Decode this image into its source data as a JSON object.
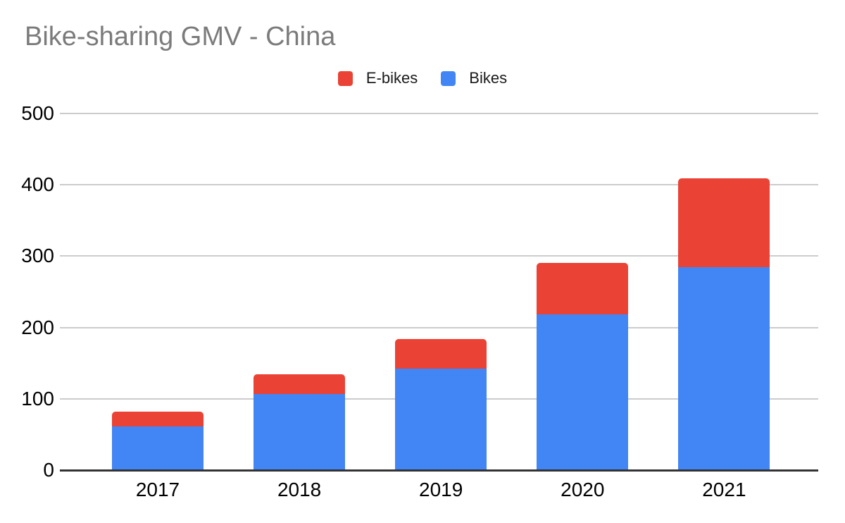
{
  "title": "Bike-sharing GMV - China",
  "legend": {
    "items": [
      {
        "label": "E-bikes",
        "color": "#EA4335"
      },
      {
        "label": "Bikes",
        "color": "#4285F4"
      }
    ]
  },
  "colors": {
    "ebikes": "#EA4335",
    "bikes": "#4285F4",
    "title_text": "#7B7B7B",
    "axis_text": "#000000",
    "gridline": "#CCCCCC",
    "baseline": "#333333",
    "background": "#FFFFFF"
  },
  "chart_data": {
    "type": "bar",
    "stacked": true,
    "title": "Bike-sharing GMV - China",
    "categories": [
      "2017",
      "2018",
      "2019",
      "2020",
      "2021"
    ],
    "series": [
      {
        "name": "Bikes",
        "color": "#4285F4",
        "values": [
          61,
          107,
          142,
          218,
          285
        ]
      },
      {
        "name": "E-bikes",
        "color": "#EA4335",
        "values": [
          21,
          27,
          42,
          73,
          124
        ]
      }
    ],
    "totals": [
      82,
      134,
      184,
      291,
      409
    ],
    "xlabel": "",
    "ylabel": "",
    "y_ticks": [
      0,
      100,
      200,
      300,
      400,
      500
    ],
    "ylim": [
      0,
      500
    ],
    "grid": true,
    "legend_position": "top"
  }
}
